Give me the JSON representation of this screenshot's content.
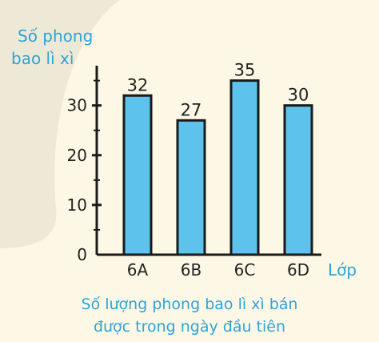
{
  "chart_data": {
    "type": "bar",
    "ylabel_lines": [
      "Số phong",
      "bao lì xì"
    ],
    "xlabel": "Lớp",
    "categories": [
      "6A",
      "6B",
      "6C",
      "6D"
    ],
    "values": [
      32,
      27,
      35,
      30
    ],
    "yticks": [
      0,
      10,
      20,
      30
    ],
    "ylim": [
      0,
      38
    ],
    "title_lines": [
      "Số lượng phong bao lì xì bán",
      "được trong ngày đầu tiên"
    ],
    "grid": false,
    "colors": {
      "bar_fill": "#5ec3ec",
      "bar_stroke": "#1a1a1a",
      "label_text": "#2fa3d6",
      "axis": "#1a1a1a",
      "background": "#fdf8e6"
    }
  }
}
